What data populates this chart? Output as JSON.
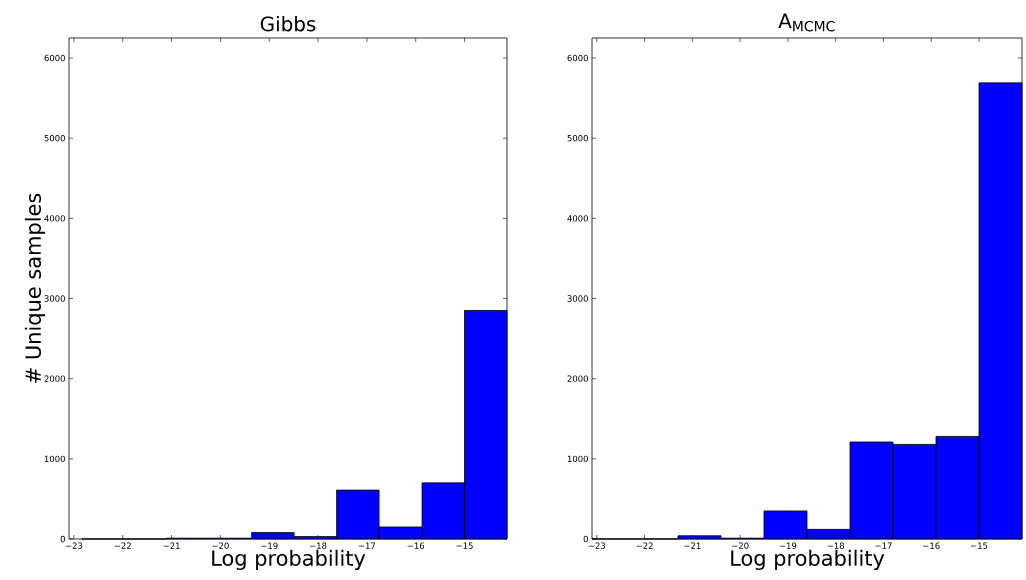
{
  "chart_data": [
    {
      "type": "histogram",
      "title": "Gibbs",
      "xlabel": "Log probability",
      "ylabel": "# Unique samples",
      "bins": [
        -22.84,
        -21.97,
        -21.1,
        -20.23,
        -19.36,
        -18.49,
        -17.62,
        -16.75,
        -15.87,
        -15.0,
        -14.13
      ],
      "values": [
        0,
        0,
        10,
        10,
        80,
        30,
        610,
        150,
        700,
        2850
      ],
      "color": "#0000ff",
      "xlim": [
        -23.1,
        -14.13
      ],
      "ylim": [
        0,
        6250
      ],
      "xticks": [
        {
          "value": -23,
          "label": "−23"
        },
        {
          "value": -22,
          "label": "−22"
        },
        {
          "value": -21,
          "label": "−21"
        },
        {
          "value": -20,
          "label": "−20"
        },
        {
          "value": -19,
          "label": "−19"
        },
        {
          "value": -18,
          "label": "−18"
        },
        {
          "value": -17,
          "label": "−17"
        },
        {
          "value": -16,
          "label": "−16"
        },
        {
          "value": -15,
          "label": "−15"
        }
      ],
      "yticks": [
        0,
        1000,
        2000,
        3000,
        4000,
        5000,
        6000
      ]
    },
    {
      "type": "histogram",
      "title": "A$_{MCMC}$",
      "xlabel": "Log probability",
      "bins": [
        -23.1,
        -22.2,
        -21.3,
        -20.4,
        -19.5,
        -18.6,
        -17.7,
        -16.8,
        -15.9,
        -15.0,
        -14.1
      ],
      "values": [
        0,
        0,
        40,
        10,
        350,
        120,
        1210,
        1180,
        1280,
        5690
      ],
      "color": "#0000ff",
      "xlim": [
        -23.1,
        -14.1
      ],
      "ylim": [
        0,
        6250
      ],
      "xticks": [
        {
          "value": -23,
          "label": "−23"
        },
        {
          "value": -22,
          "label": "−22"
        },
        {
          "value": -21,
          "label": "−21"
        },
        {
          "value": -20,
          "label": "−20"
        },
        {
          "value": -19,
          "label": "−19"
        },
        {
          "value": -18,
          "label": "−18"
        },
        {
          "value": -17,
          "label": "−17"
        },
        {
          "value": -16,
          "label": "−16"
        },
        {
          "value": -15,
          "label": "−15"
        }
      ],
      "yticks": [
        0,
        1000,
        2000,
        3000,
        4000,
        5000,
        6000
      ]
    }
  ]
}
